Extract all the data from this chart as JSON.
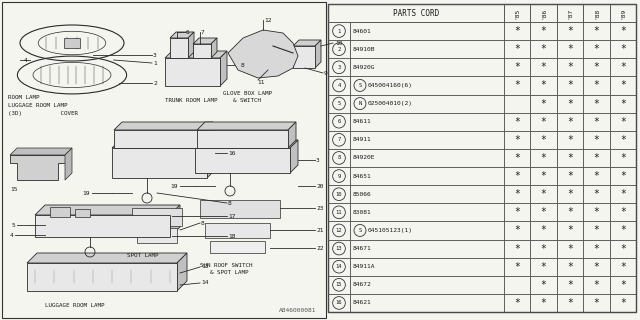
{
  "bg_color": "#f5f5f0",
  "text_color": "#1a1a1a",
  "line_color": "#2a2a2a",
  "table_line_color": "#555555",
  "col_header": "PARTS CORD",
  "year_cols": [
    "85",
    "86",
    "87",
    "88",
    "89"
  ],
  "parts": [
    {
      "num": "1",
      "prefix": "",
      "code": "84601",
      "stars": [
        1,
        1,
        1,
        1,
        1
      ]
    },
    {
      "num": "2",
      "prefix": "",
      "code": "84910B",
      "stars": [
        1,
        1,
        1,
        1,
        1
      ]
    },
    {
      "num": "3",
      "prefix": "",
      "code": "84920G",
      "stars": [
        1,
        1,
        1,
        1,
        1
      ]
    },
    {
      "num": "4",
      "prefix": "S",
      "code": "045004160(6)",
      "stars": [
        1,
        1,
        1,
        1,
        1
      ]
    },
    {
      "num": "5",
      "prefix": "N",
      "code": "025004010(2)",
      "stars": [
        0,
        1,
        1,
        1,
        1
      ]
    },
    {
      "num": "6",
      "prefix": "",
      "code": "84611",
      "stars": [
        1,
        1,
        1,
        1,
        1
      ]
    },
    {
      "num": "7",
      "prefix": "",
      "code": "84911",
      "stars": [
        1,
        1,
        1,
        1,
        1
      ]
    },
    {
      "num": "8",
      "prefix": "",
      "code": "84920E",
      "stars": [
        1,
        1,
        1,
        1,
        1
      ]
    },
    {
      "num": "9",
      "prefix": "",
      "code": "84651",
      "stars": [
        1,
        1,
        1,
        1,
        1
      ]
    },
    {
      "num": "10",
      "prefix": "",
      "code": "85066",
      "stars": [
        1,
        1,
        1,
        1,
        1
      ]
    },
    {
      "num": "11",
      "prefix": "",
      "code": "83081",
      "stars": [
        1,
        1,
        1,
        1,
        1
      ]
    },
    {
      "num": "12",
      "prefix": "S",
      "code": "045105123(1)",
      "stars": [
        1,
        1,
        1,
        1,
        1
      ]
    },
    {
      "num": "13",
      "prefix": "",
      "code": "84671",
      "stars": [
        1,
        1,
        1,
        1,
        1
      ]
    },
    {
      "num": "14",
      "prefix": "",
      "code": "84911A",
      "stars": [
        1,
        1,
        1,
        1,
        1
      ]
    },
    {
      "num": "15",
      "prefix": "",
      "code": "84672",
      "stars": [
        0,
        1,
        1,
        1,
        1
      ]
    },
    {
      "num": "16",
      "prefix": "",
      "code": "84621",
      "stars": [
        1,
        1,
        1,
        1,
        1
      ]
    }
  ],
  "footnote": "A846000081"
}
